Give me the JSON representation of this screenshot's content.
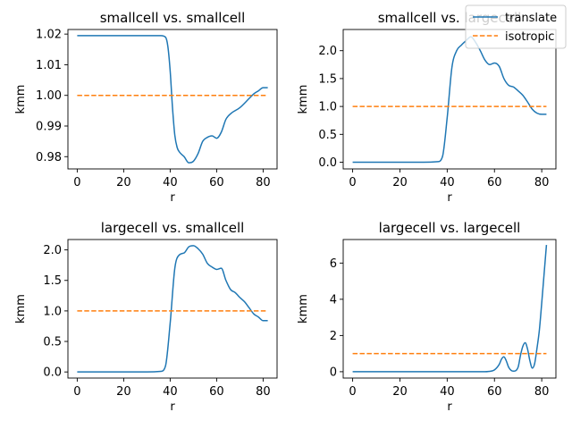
{
  "chart_data": [
    {
      "type": "line",
      "title": "smallcell vs. smallcell",
      "xlabel": "r",
      "ylabel": "kmm",
      "xlim": [
        -4,
        86
      ],
      "ylim": [
        0.976,
        1.0215
      ],
      "xticks": [
        0,
        20,
        40,
        60,
        80
      ],
      "yticks": [
        0.98,
        0.99,
        1.0,
        1.01,
        1.02
      ],
      "ytick_labels": [
        "0.98",
        "0.99",
        "1.00",
        "1.01",
        "1.02"
      ],
      "series": [
        {
          "name": "translate",
          "color": "#1f77b4",
          "style": "solid",
          "x": [
            0,
            10,
            20,
            30,
            36,
            38,
            39,
            40,
            41,
            42,
            43,
            44,
            46,
            48,
            50,
            52,
            54,
            56,
            58,
            60,
            62,
            64,
            66,
            70,
            74,
            76,
            78,
            80,
            82
          ],
          "y": [
            1.0195,
            1.0195,
            1.0195,
            1.0195,
            1.0195,
            1.019,
            1.016,
            1.008,
            0.996,
            0.987,
            0.983,
            0.9815,
            0.98,
            0.978,
            0.9785,
            0.981,
            0.985,
            0.9863,
            0.9868,
            0.986,
            0.988,
            0.9922,
            0.994,
            0.996,
            0.999,
            1.0005,
            1.0015,
            1.0025,
            1.0025
          ]
        },
        {
          "name": "isotropic",
          "color": "#ff7f0e",
          "style": "dashed",
          "x": [
            0,
            82
          ],
          "y": [
            1.0,
            1.0
          ]
        }
      ]
    },
    {
      "type": "line",
      "title": "smallcell vs. largecell",
      "xlabel": "r",
      "ylabel": "kmm",
      "xlim": [
        -4,
        86
      ],
      "ylim": [
        -0.12,
        2.38
      ],
      "xticks": [
        0,
        20,
        40,
        60,
        80
      ],
      "yticks": [
        0.0,
        0.5,
        1.0,
        1.5,
        2.0
      ],
      "ytick_labels": [
        "0.0",
        "0.5",
        "1.0",
        "1.5",
        "2.0"
      ],
      "series": [
        {
          "name": "translate",
          "color": "#1f77b4",
          "style": "solid",
          "x": [
            0,
            10,
            20,
            30,
            36,
            38,
            40,
            42,
            44,
            46,
            48,
            50,
            52,
            54,
            56,
            58,
            60,
            62,
            64,
            66,
            68,
            70,
            72,
            74,
            76,
            78,
            80,
            82
          ],
          "y": [
            0,
            0,
            0,
            0,
            0.01,
            0.1,
            0.8,
            1.7,
            2.0,
            2.1,
            2.18,
            2.25,
            2.15,
            2.0,
            1.83,
            1.75,
            1.78,
            1.72,
            1.5,
            1.38,
            1.35,
            1.28,
            1.2,
            1.08,
            0.95,
            0.88,
            0.86,
            0.86
          ]
        },
        {
          "name": "isotropic",
          "color": "#ff7f0e",
          "style": "dashed",
          "x": [
            0,
            82
          ],
          "y": [
            1.0,
            1.0
          ]
        }
      ]
    },
    {
      "type": "line",
      "title": "largecell vs. smallcell",
      "xlabel": "r",
      "ylabel": "kmm",
      "xlim": [
        -4,
        86
      ],
      "ylim": [
        -0.1,
        2.17
      ],
      "xticks": [
        0,
        20,
        40,
        60,
        80
      ],
      "yticks": [
        0.0,
        0.5,
        1.0,
        1.5,
        2.0
      ],
      "ytick_labels": [
        "0.0",
        "0.5",
        "1.0",
        "1.5",
        "2.0"
      ],
      "series": [
        {
          "name": "translate",
          "color": "#1f77b4",
          "style": "solid",
          "x": [
            0,
            10,
            20,
            30,
            36,
            38,
            40,
            42,
            44,
            46,
            48,
            50,
            52,
            54,
            56,
            58,
            60,
            62,
            64,
            66,
            68,
            70,
            72,
            74,
            76,
            78,
            80,
            82
          ],
          "y": [
            0,
            0,
            0,
            0,
            0.01,
            0.1,
            0.8,
            1.7,
            1.92,
            1.95,
            2.05,
            2.07,
            2.02,
            1.93,
            1.78,
            1.72,
            1.68,
            1.7,
            1.5,
            1.35,
            1.3,
            1.22,
            1.15,
            1.05,
            0.95,
            0.9,
            0.84,
            0.84
          ]
        },
        {
          "name": "isotropic",
          "color": "#ff7f0e",
          "style": "dashed",
          "x": [
            0,
            82
          ],
          "y": [
            1.0,
            1.0
          ]
        }
      ]
    },
    {
      "type": "line",
      "title": "largecell vs. largecell",
      "xlabel": "r",
      "ylabel": "kmm",
      "xlim": [
        -4,
        86
      ],
      "ylim": [
        -0.35,
        7.3
      ],
      "xticks": [
        0,
        20,
        40,
        60,
        80
      ],
      "yticks": [
        0,
        2,
        4,
        6
      ],
      "ytick_labels": [
        "0",
        "2",
        "4",
        "6"
      ],
      "series": [
        {
          "name": "translate",
          "color": "#1f77b4",
          "style": "solid",
          "x": [
            0,
            20,
            40,
            55,
            58,
            60,
            62,
            63,
            64,
            65,
            66,
            68,
            70,
            71,
            72,
            73,
            74,
            75,
            76,
            77,
            78,
            79,
            80,
            81,
            82
          ],
          "y": [
            0,
            0,
            0,
            0,
            0.02,
            0.1,
            0.4,
            0.7,
            0.82,
            0.6,
            0.25,
            0.03,
            0.25,
            0.9,
            1.4,
            1.6,
            1.25,
            0.6,
            0.2,
            0.45,
            1.3,
            2.3,
            3.8,
            5.4,
            7.0
          ]
        },
        {
          "name": "isotropic",
          "color": "#ff7f0e",
          "style": "dashed",
          "x": [
            0,
            82
          ],
          "y": [
            1.0,
            1.0
          ]
        }
      ]
    }
  ],
  "legend": {
    "placement": "top-right",
    "entries": [
      {
        "label": "translate",
        "color": "#1f77b4",
        "style": "solid"
      },
      {
        "label": "isotropic",
        "color": "#ff7f0e",
        "style": "dashed"
      }
    ]
  }
}
